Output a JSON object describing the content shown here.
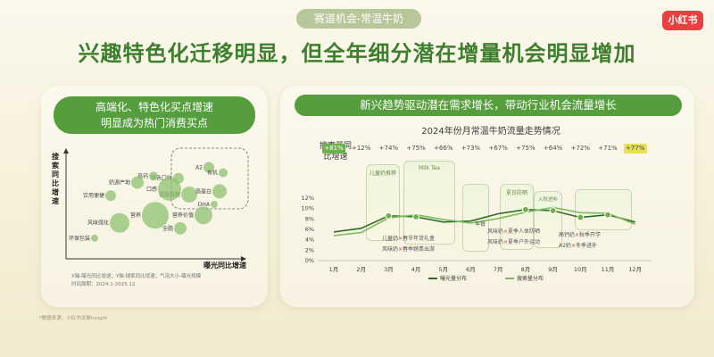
{
  "header": {
    "tag": "赛道机会-常温牛奶",
    "brand": "小红书",
    "headline": "兴趣特色化迁移明显，但全年细分潜在增量机会明显增加"
  },
  "left_panel": {
    "title_line1": "高端化、特色化买点增速",
    "title_line2": "明显成为热门消费买点",
    "note_line1": "X轴-曝光同比增速；Y轴-搜索同比增速；气泡大小-曝光规模",
    "note_line2": "时间周期：2024.1-2025.12"
  },
  "right_panel": {
    "title": "新兴趋势驱动潜在需求增长，带动行业机会流量增长",
    "chart_title": "2024年份月常温牛奶流量走势情况",
    "metric_label": "搜索量同比增速",
    "captions": [
      {
        "l1": "儿童奶",
        "hl": "×",
        "l2": "春节年货礼盒"
      },
      {
        "l1": "风味奶",
        "hl": "×",
        "l2": "春季踏青出游"
      },
      {
        "l1": "早餐",
        "hl": "",
        "l2": ""
      },
      {
        "l1": "风味奶",
        "hl": "×",
        "l2": "夏季人体防晒"
      },
      {
        "l1": "风味奶",
        "hl": "×",
        "l2": "夏季户外运动"
      },
      {
        "l1": "高钙奶",
        "hl": "×",
        "l2": "秋季开学"
      },
      {
        "l1": "A2奶",
        "hl": "×",
        "l2": "冬季进补"
      }
    ],
    "shot_texts": [
      "Milk Tea",
      "儿童奶推荐",
      "夏日防晒",
      "入秋进补"
    ]
  },
  "footnote": "*数据来源：小红书灵犀Insight",
  "chart_data": [
    {
      "type": "scatter",
      "title": "",
      "xlabel": "曝光同比增速",
      "ylabel": "搜索同比增速",
      "grid": false,
      "points": [
        {
          "label": "A2",
          "x": 0.8,
          "y": 0.84,
          "size": 6
        },
        {
          "label": "有机",
          "x": 0.88,
          "y": 0.79,
          "size": 5
        },
        {
          "label": "特色口味",
          "x": 0.63,
          "y": 0.74,
          "size": 6
        },
        {
          "label": "高钙",
          "x": 0.49,
          "y": 0.76,
          "size": 5
        },
        {
          "label": "高蛋白",
          "x": 0.86,
          "y": 0.62,
          "size": 8
        },
        {
          "label": "低脂低糖",
          "x": 0.69,
          "y": 0.59,
          "size": 9
        },
        {
          "label": "DHA",
          "x": 0.83,
          "y": 0.5,
          "size": 4
        },
        {
          "label": "营养",
          "x": 0.5,
          "y": 0.4,
          "size": 15
        },
        {
          "label": "饮用便捷",
          "x": 0.25,
          "y": 0.58,
          "size": 6
        },
        {
          "label": "全脂",
          "x": 0.64,
          "y": 0.28,
          "size": 7
        },
        {
          "label": "风味强化",
          "x": 0.3,
          "y": 0.33,
          "size": 11
        },
        {
          "label": "环保包装",
          "x": 0.16,
          "y": 0.19,
          "size": 4
        },
        {
          "label": "口感",
          "x": 0.58,
          "y": 0.64,
          "size": 13
        },
        {
          "label": "营养价值",
          "x": 0.77,
          "y": 0.4,
          "size": 10
        },
        {
          "label": "奶源产地",
          "x": 0.4,
          "y": 0.7,
          "size": 7
        }
      ]
    },
    {
      "type": "line",
      "title": "2024年份月常温牛奶流量走势情况",
      "categories": [
        "1月",
        "2月",
        "3月",
        "4月",
        "5月",
        "6月",
        "7月",
        "8月",
        "9月",
        "10月",
        "11月",
        "12月"
      ],
      "yticks": [
        "0%",
        "2%",
        "4%",
        "6%",
        "8%",
        "10%",
        "12%"
      ],
      "ylim": [
        0,
        12
      ],
      "growth_labels": [
        "+81%",
        "+12%",
        "+74%",
        "+75%",
        "+66%",
        "+73%",
        "+67%",
        "+75%",
        "+64%",
        "+72%",
        "+71%",
        "+77%"
      ],
      "growth_highlight": [
        0,
        11
      ],
      "series": [
        {
          "name": "曝光量分布",
          "color": "#2f6b2a",
          "values": [
            5.5,
            6.2,
            8.6,
            8.4,
            7.4,
            7.6,
            9.0,
            9.8,
            9.6,
            8.3,
            8.8,
            7.4
          ]
        },
        {
          "name": "搜索量分布",
          "color": "#7dbb5e",
          "values": [
            4.8,
            5.4,
            8.2,
            8.8,
            7.9,
            7.2,
            8.1,
            9.3,
            10.2,
            9.2,
            9.1,
            7.0
          ]
        }
      ],
      "markers": [
        2,
        3,
        7,
        8,
        9,
        10
      ]
    }
  ]
}
